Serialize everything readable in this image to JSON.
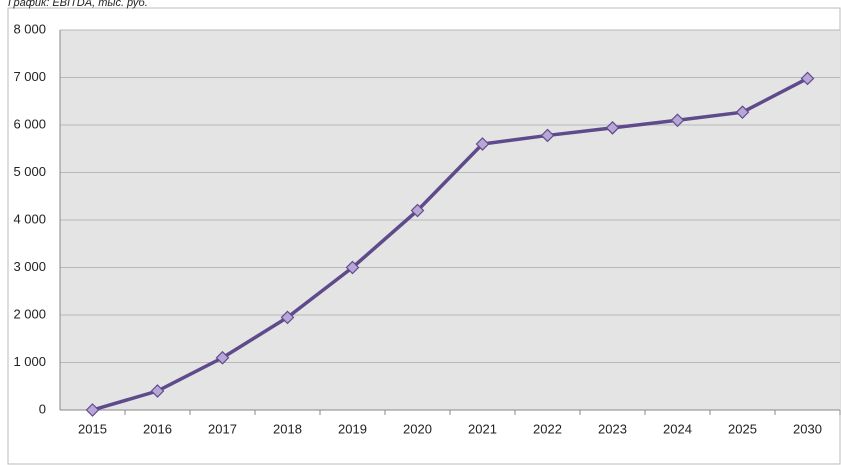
{
  "chart_data": {
    "type": "line",
    "title": "График: EBITDA, тыс. руб.",
    "categories": [
      "2015",
      "2016",
      "2017",
      "2018",
      "2019",
      "2020",
      "2021",
      "2022",
      "2023",
      "2024",
      "2025",
      "2030"
    ],
    "values": [
      0,
      400,
      1100,
      1950,
      3000,
      4200,
      5600,
      5780,
      5940,
      6100,
      6270,
      6980
    ],
    "color": "#5f4b8b",
    "ylim": [
      0,
      8000
    ],
    "yticks": [
      0,
      {
        "value": 1000,
        "label": "1 000"
      },
      {
        "value": 2000,
        "label": "2 000"
      },
      {
        "value": 3000,
        "label": "3 000"
      },
      {
        "value": 4000,
        "label": "4 000"
      },
      {
        "value": 5000,
        "label": "5 000"
      },
      {
        "value": 6000,
        "label": "6 000"
      },
      {
        "value": 7000,
        "label": "7 000"
      },
      {
        "value": 8000,
        "label": "8 000"
      }
    ],
    "grid": true
  }
}
